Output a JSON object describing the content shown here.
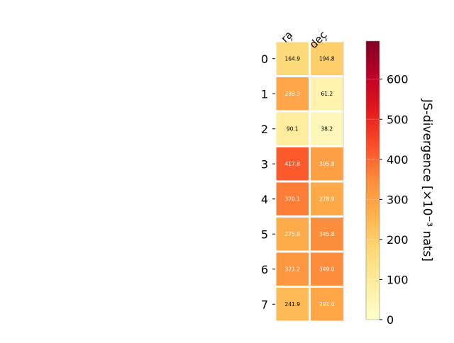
{
  "chart_data": {
    "type": "heatmap",
    "columns": [
      "ra",
      "dec"
    ],
    "rows": [
      "0",
      "1",
      "2",
      "3",
      "4",
      "5",
      "6",
      "7"
    ],
    "values": [
      [
        164.9,
        194.8
      ],
      [
        289.3,
        61.2
      ],
      [
        90.1,
        38.2
      ],
      [
        417.8,
        305.8
      ],
      [
        370.1,
        278.9
      ],
      [
        275.8,
        345.8
      ],
      [
        321.2,
        349.0
      ],
      [
        241.9,
        291.0
      ]
    ],
    "cell_labels": [
      [
        "164.9",
        "194.8"
      ],
      [
        "289.3",
        "61.2"
      ],
      [
        "90.1",
        "38.2"
      ],
      [
        "417.8",
        "305.8"
      ],
      [
        "370.1",
        "278.9"
      ],
      [
        "275.8",
        "345.8"
      ],
      [
        "321.2",
        "349.0"
      ],
      [
        "241.9",
        "291.0"
      ]
    ],
    "colormap": "YlOrRd",
    "colorbar": {
      "label": "JS-divergence [×10⁻³ nats]",
      "range": [
        0,
        695
      ],
      "ticks": [
        0,
        100,
        200,
        300,
        400,
        500,
        600
      ],
      "tick_labels": [
        "0",
        "100",
        "200",
        "300",
        "400",
        "500",
        "600"
      ]
    }
  }
}
